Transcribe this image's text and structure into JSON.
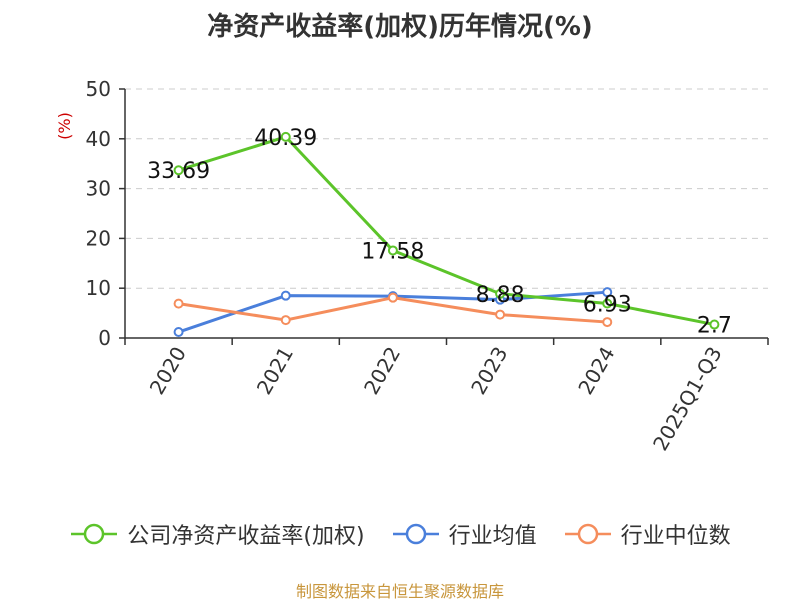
{
  "source": "制图数据来自恒生聚源数据库",
  "chart_data": {
    "type": "line",
    "title": "净资产收益率(加权)历年情况(%)",
    "ylabel": "(%)",
    "xlabel": "",
    "categories": [
      "2020",
      "2021",
      "2022",
      "2023",
      "2024",
      "2025Q1-Q3"
    ],
    "ylim": [
      0,
      50
    ],
    "yticks": [
      0,
      10,
      20,
      30,
      40,
      50
    ],
    "grid": true,
    "legend_position": "bottom",
    "series": [
      {
        "name": "公司净资产收益率(加权)",
        "color": "#5cc42a",
        "values": [
          33.69,
          40.39,
          17.58,
          8.88,
          6.93,
          2.7
        ],
        "labels": [
          "33.69",
          "40.39",
          "17.58",
          "8.88",
          "6.93",
          "2.7"
        ]
      },
      {
        "name": "行业均值",
        "color": "#4a7fdb",
        "values": [
          1.2,
          8.5,
          8.4,
          7.7,
          9.2,
          null
        ]
      },
      {
        "name": "行业中位数",
        "color": "#f58d5c",
        "values": [
          6.9,
          3.6,
          8.1,
          4.7,
          3.2,
          null
        ]
      }
    ]
  }
}
